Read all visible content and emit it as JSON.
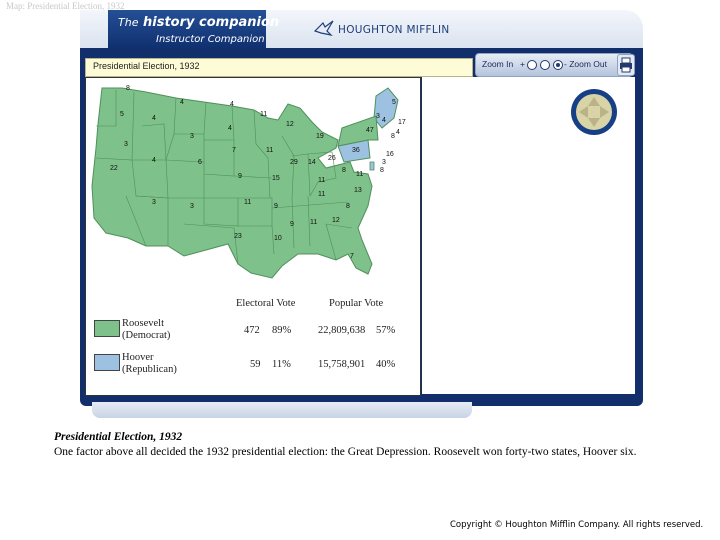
{
  "page": {
    "header": "Map: Presidential Election, 1932",
    "caption_title": "Presidential Election, 1932",
    "caption_text": "One factor above all decided the 1932 presidential election: the Great Depression. Roosevelt won forty-two states, Hoover six.",
    "copyright": "Copyright © Houghton Mifflin Company. All rights reserved."
  },
  "app": {
    "brand_the": "The",
    "brand_name": "history companion",
    "brand_sub": "Instructor Companion",
    "publisher": "HOUGHTON MIFFLIN",
    "panel_title": "Presidential Election, 1932",
    "zoom_in_label": "Zoom In",
    "zoom_out_label": "- Zoom Out",
    "zoom_in_sign": "+",
    "zoom_level": 3,
    "zoom_levels": 3,
    "icons": [
      "print-icon",
      "pan-arrows-icon"
    ]
  },
  "map": {
    "colors": {
      "roosevelt": "#7fc18a",
      "hoover": "#9dc1e0",
      "border": "#4f8f5c"
    },
    "electoral_votes": [
      {
        "state": "WA",
        "ev": "8"
      },
      {
        "state": "OR",
        "ev": "5"
      },
      {
        "state": "ID",
        "ev": "4"
      },
      {
        "state": "MT",
        "ev": "4"
      },
      {
        "state": "ND",
        "ev": "4"
      },
      {
        "state": "MN",
        "ev": "11"
      },
      {
        "state": "WI",
        "ev": "12"
      },
      {
        "state": "MI",
        "ev": "19"
      },
      {
        "state": "NV",
        "ev": "3"
      },
      {
        "state": "WY",
        "ev": "3"
      },
      {
        "state": "SD",
        "ev": "4"
      },
      {
        "state": "CA",
        "ev": "22"
      },
      {
        "state": "UT",
        "ev": "4"
      },
      {
        "state": "CO",
        "ev": "6"
      },
      {
        "state": "NE",
        "ev": "7"
      },
      {
        "state": "IA",
        "ev": "11"
      },
      {
        "state": "IL",
        "ev": "29"
      },
      {
        "state": "IN",
        "ev": "14"
      },
      {
        "state": "OH",
        "ev": "26"
      },
      {
        "state": "KS",
        "ev": "9"
      },
      {
        "state": "MO",
        "ev": "15"
      },
      {
        "state": "KY",
        "ev": "11"
      },
      {
        "state": "WV",
        "ev": "8"
      },
      {
        "state": "VA",
        "ev": "11"
      },
      {
        "state": "AZ",
        "ev": "3"
      },
      {
        "state": "NM",
        "ev": "3"
      },
      {
        "state": "OK",
        "ev": "11"
      },
      {
        "state": "AR",
        "ev": "9"
      },
      {
        "state": "TN",
        "ev": "11"
      },
      {
        "state": "NC",
        "ev": "13"
      },
      {
        "state": "SC",
        "ev": "8"
      },
      {
        "state": "MS",
        "ev": "9"
      },
      {
        "state": "AL",
        "ev": "11"
      },
      {
        "state": "GA",
        "ev": "12"
      },
      {
        "state": "TX",
        "ev": "23"
      },
      {
        "state": "LA",
        "ev": "10"
      },
      {
        "state": "FL",
        "ev": "7"
      },
      {
        "state": "PA",
        "ev": "36"
      },
      {
        "state": "NY",
        "ev": "47"
      },
      {
        "state": "ME",
        "ev": "5"
      },
      {
        "state": "VT",
        "ev": "3"
      },
      {
        "state": "NH",
        "ev": "4"
      },
      {
        "state": "MA",
        "ev": "17"
      },
      {
        "state": "RI",
        "ev": "4"
      },
      {
        "state": "CT",
        "ev": "8"
      },
      {
        "state": "NJ",
        "ev": "16"
      },
      {
        "state": "DE",
        "ev": "3"
      },
      {
        "state": "MD",
        "ev": "8"
      }
    ],
    "legend": {
      "col_electoral": "Electoral Vote",
      "col_popular": "Popular Vote",
      "rows": [
        {
          "name": "Roosevelt",
          "party": "(Democrat)",
          "electoral": "472",
          "electoral_pct": "89%",
          "popular": "22,809,638",
          "popular_pct": "57%"
        },
        {
          "name": "Hoover",
          "party": "(Republican)",
          "electoral": "59",
          "electoral_pct": "11%",
          "popular": "15,758,901",
          "popular_pct": "40%"
        }
      ]
    }
  }
}
